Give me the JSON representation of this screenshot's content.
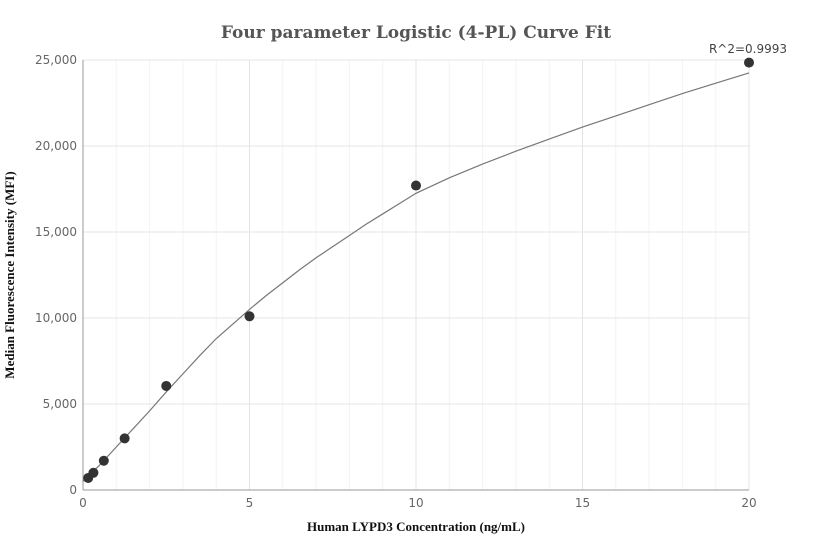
{
  "chart_data": {
    "type": "scatter",
    "title": "Four parameter Logistic (4-PL) Curve Fit",
    "xlabel": "Human LYPD3 Concentration (ng/mL)",
    "ylabel": "Median Fluorescence Intensity (MFI)",
    "xlim": [
      0,
      20
    ],
    "ylim": [
      0,
      25000
    ],
    "xticks": [
      0,
      5,
      10,
      15,
      20
    ],
    "xtick_labels": [
      "0",
      "5",
      "10",
      "15",
      "20"
    ],
    "yticks": [
      0,
      5000,
      10000,
      15000,
      20000,
      25000
    ],
    "ytick_labels": [
      "0",
      "5,000",
      "10,000",
      "15,000",
      "20,000",
      "25,000"
    ],
    "grid": true,
    "annotation": "R^2=0.9993",
    "colors": {
      "points": "#333333",
      "curve": "#777777",
      "grid": "#e4e4e4"
    },
    "series": [
      {
        "x": [
          0.156,
          0.313,
          0.625,
          1.25,
          2.5,
          5,
          10,
          20
        ],
        "y": [
          700,
          1000,
          1700,
          3000,
          6050,
          10100,
          17700,
          24850
        ]
      }
    ],
    "fit_curve": {
      "x": [
        0,
        0.5,
        1,
        1.5,
        2,
        2.5,
        3,
        3.5,
        4,
        4.5,
        5,
        5.5,
        6,
        6.5,
        7,
        7.5,
        8,
        8.5,
        9,
        9.5,
        10,
        11,
        12,
        13,
        14,
        15,
        16,
        17,
        18,
        19,
        20
      ],
      "y": [
        500,
        1450,
        2500,
        3550,
        4600,
        5700,
        6750,
        7800,
        8800,
        9650,
        10500,
        11300,
        12050,
        12800,
        13500,
        14150,
        14800,
        15450,
        16050,
        16650,
        17250,
        18150,
        18950,
        19700,
        20400,
        21100,
        21750,
        22400,
        23050,
        23650,
        24250
      ]
    }
  }
}
